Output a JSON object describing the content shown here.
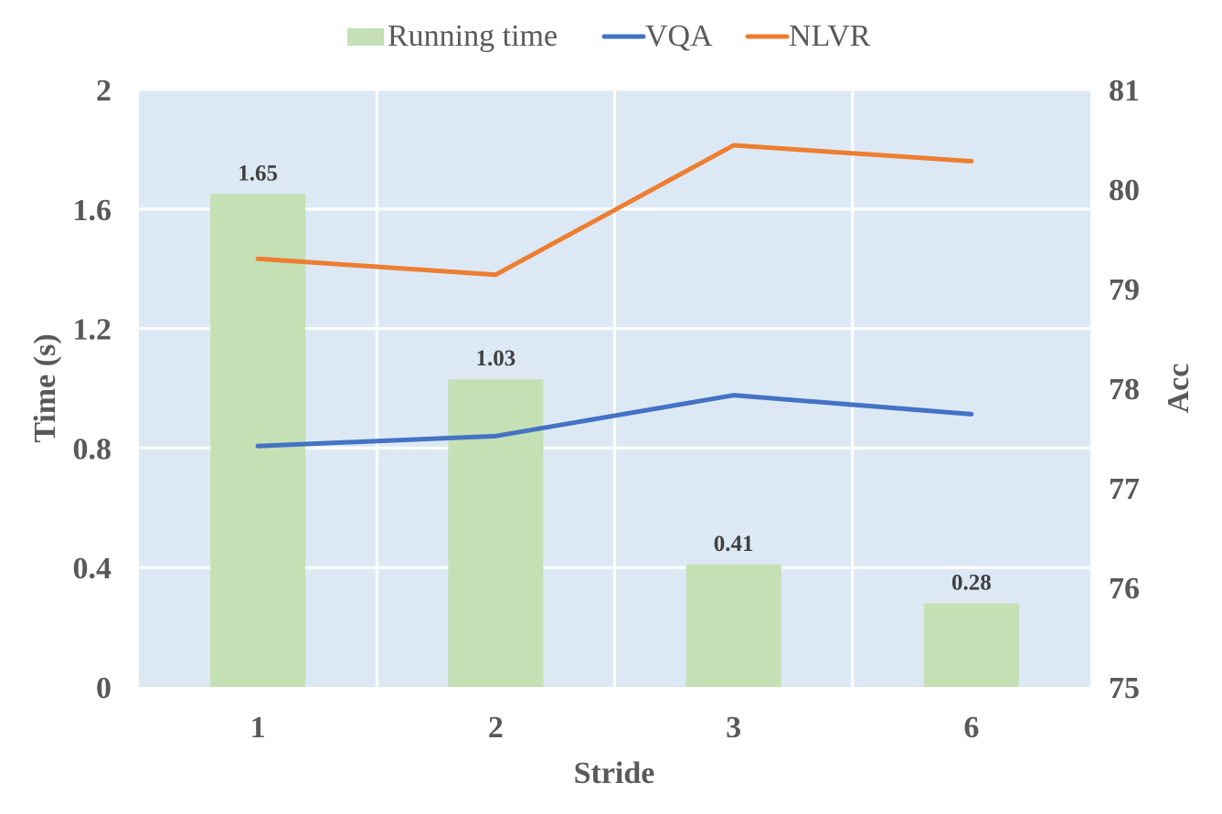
{
  "chart_data": {
    "type": "bar+line",
    "categories": [
      "1",
      "2",
      "3",
      "6"
    ],
    "xlabel": "Stride",
    "ylabel_left": "Time (s)",
    "ylabel_right": "Acc",
    "ylim_left": [
      0,
      2
    ],
    "yticks_left": [
      "0",
      "0.4",
      "0.8",
      "1.2",
      "1.6",
      "2"
    ],
    "ylim_right": [
      75,
      81
    ],
    "yticks_right": [
      "75",
      "76",
      "77",
      "78",
      "79",
      "80",
      "81"
    ],
    "grid": true,
    "legend_position": "top",
    "series": [
      {
        "name": "Running time",
        "kind": "bar",
        "axis": "left",
        "color": "#c5e0b4",
        "values": [
          1.65,
          1.03,
          0.41,
          0.28
        ],
        "labels": [
          "1.65",
          "1.03",
          "0.41",
          "0.28"
        ]
      },
      {
        "name": "VQA",
        "kind": "line",
        "axis": "right",
        "color": "#4472c4",
        "values": [
          77.42,
          77.52,
          77.93,
          77.74
        ]
      },
      {
        "name": "NLVR",
        "kind": "line",
        "axis": "right",
        "color": "#ed7d31",
        "values": [
          79.3,
          79.14,
          80.44,
          80.28
        ]
      }
    ],
    "plot_background": "#dce9f5",
    "grid_color": "#ffffff"
  }
}
